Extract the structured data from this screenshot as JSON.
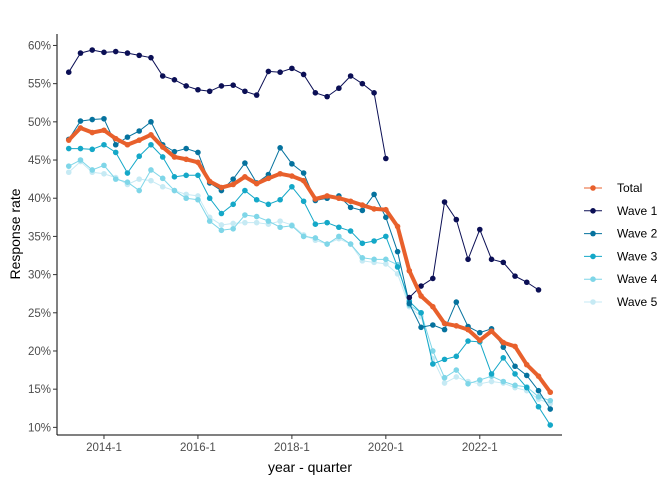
{
  "chart_data": {
    "type": "line",
    "xlabel": "year - quarter",
    "ylabel": "Response rate",
    "x_ticks": [
      "2014-1",
      "2016-1",
      "2018-1",
      "2020-1",
      "2022-1"
    ],
    "y_ticks": [
      "10%",
      "15%",
      "20%",
      "25%",
      "30%",
      "35%",
      "40%",
      "45%",
      "50%",
      "55%",
      "60%"
    ],
    "ylim": [
      0.09,
      0.615
    ],
    "x_range_quarters": [
      "2013-2",
      "2023-3"
    ],
    "grid": false,
    "legend_position": "right",
    "x": [
      "2013-2",
      "2013-3",
      "2013-4",
      "2014-1",
      "2014-2",
      "2014-3",
      "2014-4",
      "2015-1",
      "2015-2",
      "2015-3",
      "2015-4",
      "2016-1",
      "2016-2",
      "2016-3",
      "2016-4",
      "2017-1",
      "2017-2",
      "2017-3",
      "2017-4",
      "2018-1",
      "2018-2",
      "2018-3",
      "2018-4",
      "2019-1",
      "2019-2",
      "2019-3",
      "2019-4",
      "2020-1",
      "2020-2",
      "2020-3",
      "2020-4",
      "2021-1",
      "2021-2",
      "2021-3",
      "2021-4",
      "2022-1",
      "2022-2",
      "2022-3",
      "2022-4",
      "2023-1",
      "2023-2",
      "2023-3"
    ],
    "series": [
      {
        "name": "Total",
        "color": "#e8602c",
        "line_width": 4,
        "values": [
          0.476,
          0.492,
          0.486,
          0.489,
          0.478,
          0.47,
          0.476,
          0.483,
          0.467,
          0.454,
          0.451,
          0.447,
          0.422,
          0.414,
          0.418,
          0.428,
          0.419,
          0.426,
          0.432,
          0.429,
          0.423,
          0.399,
          0.403,
          0.4,
          0.396,
          0.391,
          0.386,
          0.385,
          0.363,
          0.305,
          0.272,
          0.258,
          0.236,
          0.233,
          0.228,
          0.214,
          0.226,
          0.211,
          0.206,
          0.182,
          0.167,
          0.146
        ]
      },
      {
        "name": "Wave 1",
        "color": "#0b0f55",
        "line_width": 1,
        "values": [
          0.565,
          0.59,
          0.594,
          0.591,
          0.592,
          0.59,
          0.587,
          0.584,
          0.56,
          0.555,
          0.547,
          0.542,
          0.54,
          0.547,
          0.548,
          0.54,
          0.535,
          0.566,
          0.565,
          0.57,
          0.562,
          0.538,
          0.533,
          0.544,
          0.56,
          0.55,
          0.538,
          0.452,
          null,
          0.27,
          0.285,
          0.295,
          0.395,
          0.372,
          0.32,
          0.359,
          0.32,
          0.316,
          0.298,
          0.29,
          0.28,
          null
        ]
      },
      {
        "name": "Wave 2",
        "color": "#05729e",
        "line_width": 1,
        "values": [
          0.477,
          0.501,
          0.503,
          0.504,
          0.47,
          0.48,
          0.488,
          0.5,
          0.47,
          0.461,
          0.465,
          0.46,
          0.42,
          0.41,
          0.425,
          0.446,
          0.42,
          0.431,
          0.466,
          0.445,
          0.433,
          0.397,
          0.4,
          0.403,
          0.388,
          0.384,
          0.405,
          0.375,
          0.33,
          0.262,
          0.231,
          0.234,
          0.228,
          0.264,
          0.232,
          0.224,
          0.229,
          0.205,
          0.18,
          0.168,
          0.148,
          0.124
        ]
      },
      {
        "name": "Wave 3",
        "color": "#14a8c8",
        "line_width": 1,
        "values": [
          0.465,
          0.465,
          0.464,
          0.47,
          0.46,
          0.433,
          0.455,
          0.47,
          0.454,
          0.428,
          0.43,
          0.43,
          0.4,
          0.38,
          0.392,
          0.41,
          0.398,
          0.392,
          0.398,
          0.415,
          0.396,
          0.366,
          0.368,
          0.362,
          0.357,
          0.341,
          0.344,
          0.35,
          0.31,
          0.265,
          0.25,
          0.183,
          0.189,
          0.193,
          0.213,
          0.212,
          0.17,
          0.191,
          0.17,
          0.152,
          0.127,
          0.103
        ]
      },
      {
        "name": "Wave 4",
        "color": "#7fd6e8",
        "line_width": 1,
        "values": [
          0.442,
          0.45,
          0.437,
          0.443,
          0.425,
          0.421,
          0.41,
          0.437,
          0.426,
          0.41,
          0.4,
          0.398,
          0.37,
          0.358,
          0.36,
          0.378,
          0.376,
          0.37,
          0.362,
          0.364,
          0.35,
          0.348,
          0.34,
          0.35,
          0.34,
          0.322,
          0.32,
          0.32,
          0.313,
          0.26,
          0.25,
          0.2,
          0.165,
          0.175,
          0.157,
          0.162,
          0.167,
          0.16,
          0.155,
          0.153,
          0.14,
          0.135
        ]
      },
      {
        "name": "Wave 5",
        "color": "#c6eaf4",
        "line_width": 1,
        "values": [
          0.434,
          0.448,
          0.434,
          0.432,
          0.427,
          0.418,
          0.425,
          0.423,
          0.415,
          0.41,
          0.405,
          0.403,
          0.375,
          0.365,
          0.367,
          0.368,
          0.368,
          0.366,
          0.37,
          0.365,
          0.352,
          0.345,
          0.34,
          0.347,
          0.34,
          0.318,
          0.316,
          0.314,
          0.301,
          0.258,
          0.245,
          0.19,
          0.158,
          0.166,
          0.16,
          0.157,
          0.16,
          0.158,
          0.152,
          0.148,
          0.137,
          0.131
        ]
      }
    ]
  }
}
